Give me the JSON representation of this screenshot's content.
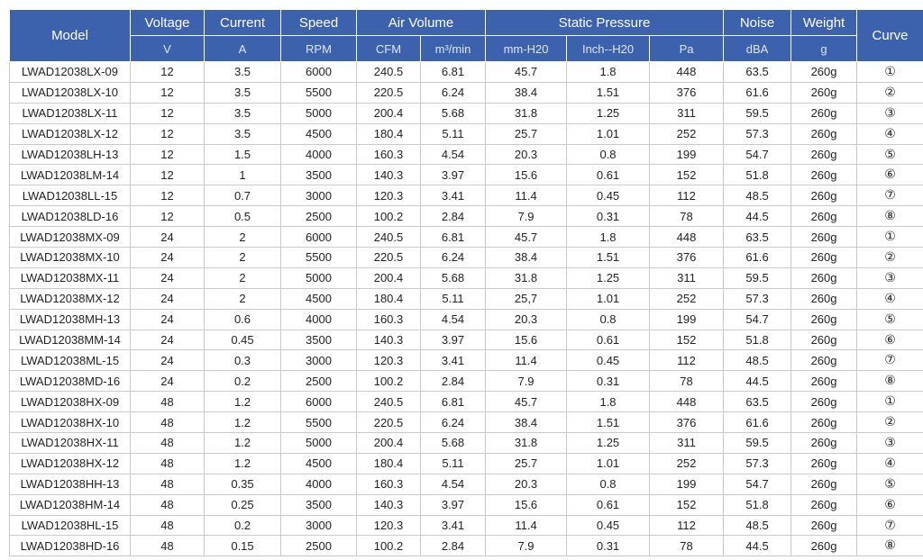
{
  "header": {
    "model": "Model",
    "voltage": "Voltage",
    "current": "Current",
    "speed": "Speed",
    "air_volume": "Air Volume",
    "static_pressure": "Static Pressure",
    "noise": "Noise",
    "weight": "Weight",
    "curve": "Curve",
    "units": {
      "voltage": "V",
      "current": "A",
      "speed": "RPM",
      "cfm": "CFM",
      "m3min": "m³/min",
      "mmh2o": "mm-H20",
      "inchh2o": "Inch--H20",
      "pa": "Pa",
      "noise": "dBA",
      "weight": "g"
    }
  },
  "rows": [
    [
      "LWAD12038LX-09",
      "12",
      "3.5",
      "6000",
      "240.5",
      "6.81",
      "45.7",
      "1.8",
      "448",
      "63.5",
      "260g",
      "①"
    ],
    [
      "LWAD12038LX-10",
      "12",
      "3.5",
      "5500",
      "220.5",
      "6.24",
      "38.4",
      "1.51",
      "376",
      "61.6",
      "260g",
      "②"
    ],
    [
      "LWAD12038LX-11",
      "12",
      "3.5",
      "5000",
      "200.4",
      "5.68",
      "31.8",
      "1.25",
      "311",
      "59.5",
      "260g",
      "③"
    ],
    [
      "LWAD12038LX-12",
      "12",
      "3.5",
      "4500",
      "180.4",
      "5.11",
      "25.7",
      "1.01",
      "252",
      "57.3",
      "260g",
      "④"
    ],
    [
      "LWAD12038LH-13",
      "12",
      "1.5",
      "4000",
      "160.3",
      "4.54",
      "20.3",
      "0.8",
      "199",
      "54.7",
      "260g",
      "⑤"
    ],
    [
      "LWAD12038LM-14",
      "12",
      "1",
      "3500",
      "140.3",
      "3.97",
      "15.6",
      "0.61",
      "152",
      "51.8",
      "260g",
      "⑥"
    ],
    [
      "LWAD12038LL-15",
      "12",
      "0.7",
      "3000",
      "120.3",
      "3.41",
      "11.4",
      "0.45",
      "112",
      "48.5",
      "260g",
      "⑦"
    ],
    [
      "LWAD12038LD-16",
      "12",
      "0.5",
      "2500",
      "100.2",
      "2.84",
      "7.9",
      "0.31",
      "78",
      "44.5",
      "260g",
      "⑧"
    ],
    [
      "LWAD12038MX-09",
      "24",
      "2",
      "6000",
      "240.5",
      "6.81",
      "45.7",
      "1.8",
      "448",
      "63.5",
      "260g",
      "①"
    ],
    [
      "LWAD12038MX-10",
      "24",
      "2",
      "5500",
      "220.5",
      "6.24",
      "38.4",
      "1.51",
      "376",
      "61.6",
      "260g",
      "②"
    ],
    [
      "LWAD12038MX-11",
      "24",
      "2",
      "5000",
      "200.4",
      "5.68",
      "31.8",
      "1.25",
      "311",
      "59.5",
      "260g",
      "③"
    ],
    [
      "LWAD12038MX-12",
      "24",
      "2",
      "4500",
      "180.4",
      "5.11",
      "25,7",
      "1.01",
      "252",
      "57.3",
      "260g",
      "④"
    ],
    [
      "LWAD12038MH-13",
      "24",
      "0.6",
      "4000",
      "160.3",
      "4.54",
      "20.3",
      "0.8",
      "199",
      "54.7",
      "260g",
      "⑤"
    ],
    [
      "LWAD12038MM-14",
      "24",
      "0.45",
      "3500",
      "140.3",
      "3.97",
      "15.6",
      "0.61",
      "152",
      "51.8",
      "260g",
      "⑥"
    ],
    [
      "LWAD12038ML-15",
      "24",
      "0.3",
      "3000",
      "120.3",
      "3.41",
      "11.4",
      "0.45",
      "112",
      "48.5",
      "260g",
      "⑦"
    ],
    [
      "LWAD12038MD-16",
      "24",
      "0.2",
      "2500",
      "100.2",
      "2.84",
      "7.9",
      "0.31",
      "78",
      "44.5",
      "260g",
      "⑧"
    ],
    [
      "LWAD12038HX-09",
      "48",
      "1.2",
      "6000",
      "240.5",
      "6.81",
      "45.7",
      "1.8",
      "448",
      "63.5",
      "260g",
      "①"
    ],
    [
      "LWAD12038HX-10",
      "48",
      "1.2",
      "5500",
      "220.5",
      "6.24",
      "38.4",
      "1.51",
      "376",
      "61.6",
      "260g",
      "②"
    ],
    [
      "LWAD12038HX-11",
      "48",
      "1.2",
      "5000",
      "200.4",
      "5.68",
      "31.8",
      "1.25",
      "311",
      "59.5",
      "260g",
      "③"
    ],
    [
      "LWAD12038HX-12",
      "48",
      "1.2",
      "4500",
      "180.4",
      "5.11",
      "25.7",
      "1.01",
      "252",
      "57.3",
      "260g",
      "④"
    ],
    [
      "LWAD12038HH-13",
      "48",
      "0.35",
      "4000",
      "160.3",
      "4.54",
      "20.3",
      "0.8",
      "199",
      "54.7",
      "260g",
      "⑤"
    ],
    [
      "LWAD12038HM-14",
      "48",
      "0.25",
      "3500",
      "140.3",
      "3.97",
      "15.6",
      "0.61",
      "152",
      "51.8",
      "260g",
      "⑥"
    ],
    [
      "LWAD12038HL-15",
      "48",
      "0.2",
      "3000",
      "120.3",
      "3.41",
      "11.4",
      "0.45",
      "112",
      "48.5",
      "260g",
      "⑦"
    ],
    [
      "LWAD12038HD-16",
      "48",
      "0.15",
      "2500",
      "100.2",
      "2.84",
      "7.9",
      "0.31",
      "78",
      "44.5",
      "260g",
      "⑧"
    ]
  ],
  "colors": {
    "header_bg": "#3d62ad",
    "header_text": "#ffffff",
    "grid": "#c9c9c9"
  }
}
